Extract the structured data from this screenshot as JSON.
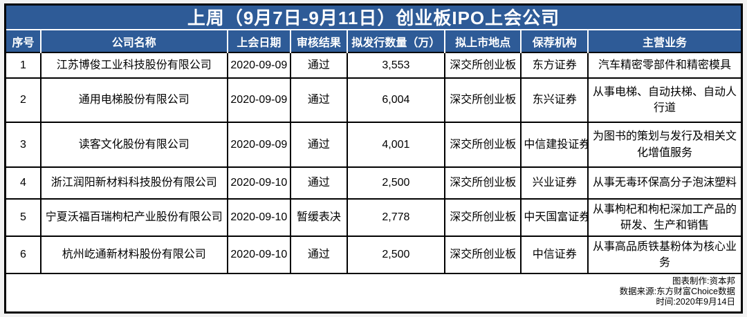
{
  "title": "上周（9月7日-9月11日）创业板IPO上会公司",
  "colors": {
    "header_blue": "#2E5B97",
    "title_text": "#FFFFFF",
    "grid_black": "#000000",
    "cell_white": "#FFFFFF"
  },
  "table": {
    "headers": [
      "序号",
      "公司名称",
      "上会日期",
      "审核结果",
      "拟发行数量（万）",
      "拟上市地点",
      "保荐机构",
      "主营业务"
    ],
    "rows": [
      [
        "1",
        "江苏博俊工业科技股份有限公司",
        "2020-09-09",
        "通过",
        "3,553",
        "深交所创业板",
        "东方证券",
        "汽车精密零部件和精密模具"
      ],
      [
        "2",
        "通用电梯股份有限公司",
        "2020-09-09",
        "通过",
        "6,004",
        "深交所创业板",
        "东兴证券",
        "从事电梯、自动扶梯、自动人行道"
      ],
      [
        "3",
        "读客文化股份有限公司",
        "2020-09-09",
        "通过",
        "4,001",
        "深交所创业板",
        "中信建投证券",
        "为图书的策划与发行及相关文化增值服务"
      ],
      [
        "4",
        "浙江润阳新材料科技股份有限公司",
        "2020-09-10",
        "通过",
        "2,500",
        "深交所创业板",
        "兴业证券",
        "从事无毒环保高分子泡沫塑料"
      ],
      [
        "5",
        "宁夏沃福百瑞枸杞产业股份有限公司",
        "2020-09-10",
        "暂缓表决",
        "2,778",
        "深交所创业板",
        "中天国富证券",
        "从事枸杞和枸杞深加工产品的研发、生产和销售"
      ],
      [
        "6",
        "杭州屹通新材料股份有限公司",
        "2020-09-10",
        "通过",
        "2,500",
        "深交所创业板",
        "中信证券",
        "从事高品质铁基粉体为核心业务"
      ]
    ]
  },
  "footer": {
    "lines": [
      "图表制作:资本邦",
      "数据来源:东方财富Choice数据",
      "时间:2020年9月14日"
    ]
  }
}
